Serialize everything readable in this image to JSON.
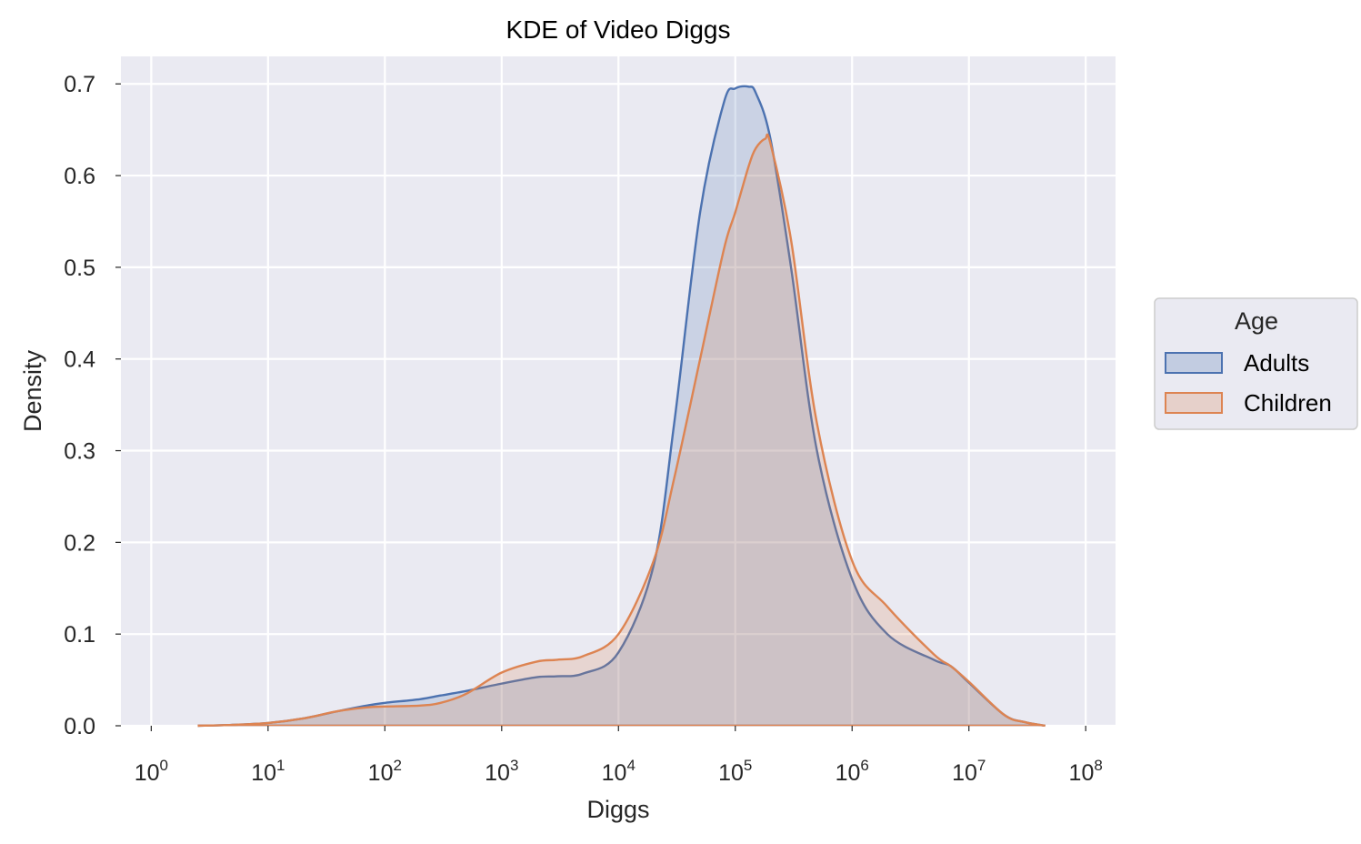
{
  "chart_data": {
    "type": "area",
    "title": "KDE of Video Diggs",
    "xlabel": "Diggs",
    "ylabel": "Density",
    "x_scale": "log10",
    "xlim": [
      0.55,
      180000000
    ],
    "ylim": [
      0,
      0.73
    ],
    "x_ticks": [
      {
        "base": "10",
        "exp": "0",
        "value": 1
      },
      {
        "base": "10",
        "exp": "1",
        "value": 10
      },
      {
        "base": "10",
        "exp": "2",
        "value": 100
      },
      {
        "base": "10",
        "exp": "3",
        "value": 1000
      },
      {
        "base": "10",
        "exp": "4",
        "value": 10000
      },
      {
        "base": "10",
        "exp": "5",
        "value": 100000
      },
      {
        "base": "10",
        "exp": "6",
        "value": 1000000
      },
      {
        "base": "10",
        "exp": "7",
        "value": 10000000
      },
      {
        "base": "10",
        "exp": "8",
        "value": 100000000
      }
    ],
    "y_ticks": [
      "0.0",
      "0.1",
      "0.2",
      "0.3",
      "0.4",
      "0.5",
      "0.6",
      "0.7"
    ],
    "y_tick_values": [
      0,
      0.1,
      0.2,
      0.3,
      0.4,
      0.5,
      0.6,
      0.7
    ],
    "grid": true,
    "background": "#eaeaf2",
    "legend": {
      "title": "Age",
      "position": "right-center"
    },
    "series": [
      {
        "name": "Adults",
        "color": "#4c72b0",
        "x": [
          2.5,
          5,
          10,
          20,
          40,
          70,
          100,
          200,
          300,
          500,
          1000,
          2000,
          3000,
          5000,
          10000,
          20000,
          30000,
          50000,
          80000,
          100000,
          130000,
          150000,
          200000,
          300000,
          500000,
          1000000,
          2000000,
          5000000,
          7000000,
          10000000,
          20000000,
          30000000,
          45000000
        ],
        "y": [
          0.0,
          0.001,
          0.003,
          0.008,
          0.016,
          0.022,
          0.025,
          0.029,
          0.033,
          0.038,
          0.046,
          0.053,
          0.054,
          0.057,
          0.08,
          0.175,
          0.33,
          0.56,
          0.68,
          0.695,
          0.697,
          0.69,
          0.64,
          0.5,
          0.3,
          0.16,
          0.1,
          0.072,
          0.065,
          0.047,
          0.012,
          0.004,
          0.0
        ]
      },
      {
        "name": "Children",
        "color": "#dd8452",
        "x": [
          2.5,
          5,
          10,
          20,
          40,
          70,
          100,
          200,
          300,
          500,
          1000,
          2000,
          3000,
          5000,
          10000,
          20000,
          30000,
          50000,
          80000,
          100000,
          130000,
          150000,
          180000,
          200000,
          300000,
          500000,
          1000000,
          2000000,
          5000000,
          7000000,
          10000000,
          20000000,
          30000000,
          45000000
        ],
        "y": [
          0.0,
          0.001,
          0.003,
          0.008,
          0.016,
          0.02,
          0.021,
          0.022,
          0.025,
          0.035,
          0.058,
          0.07,
          0.072,
          0.076,
          0.1,
          0.18,
          0.27,
          0.4,
          0.52,
          0.56,
          0.61,
          0.63,
          0.64,
          0.635,
          0.53,
          0.33,
          0.18,
          0.13,
          0.078,
          0.065,
          0.048,
          0.012,
          0.004,
          0.0
        ]
      }
    ]
  }
}
